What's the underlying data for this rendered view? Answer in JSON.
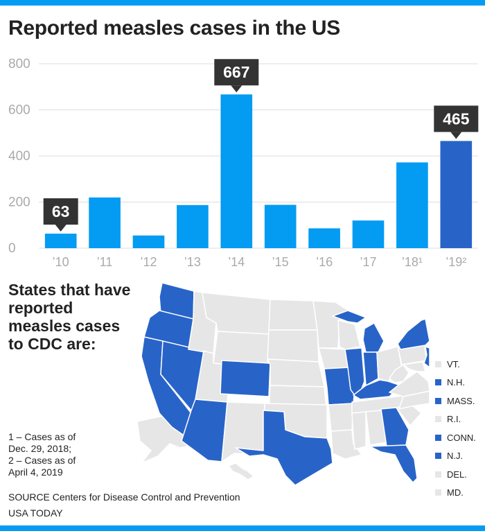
{
  "title": "Reported measles cases in the US",
  "chart_data": {
    "type": "bar",
    "categories": [
      "’10",
      "’11",
      "’12",
      "’13",
      "’14",
      "’15",
      "’16",
      "’17",
      "’18¹",
      "’19²"
    ],
    "values": [
      63,
      220,
      55,
      187,
      667,
      188,
      86,
      120,
      372,
      465
    ],
    "ylim": [
      0,
      800
    ],
    "yticks": [
      0,
      200,
      400,
      600,
      800
    ],
    "grid": true,
    "callouts": [
      {
        "index": 0,
        "label": "63"
      },
      {
        "index": 4,
        "label": "667"
      },
      {
        "index": 9,
        "label": "465"
      }
    ],
    "highlight_index": 9,
    "colors": {
      "bar": "#049bf2",
      "highlight": "#2864c8",
      "callout": "#333333",
      "grid": "#dddddd",
      "tick": "#aaaaaa"
    }
  },
  "map": {
    "heading": "States that have reported measles cases to CDC are:",
    "colors": {
      "reported": "#2864c8",
      "not_reported": "#e6e6e6",
      "border": "#ffffff"
    },
    "reported_states": [
      "WA",
      "OR",
      "CA",
      "NV",
      "AZ",
      "CO",
      "TX",
      "MO",
      "IL",
      "IN",
      "MI",
      "KY",
      "GA",
      "FL",
      "NY",
      "NH",
      "MA",
      "CT",
      "NJ"
    ],
    "legend": [
      {
        "label": "VT.",
        "reported": false
      },
      {
        "label": "N.H.",
        "reported": true
      },
      {
        "label": "MASS.",
        "reported": true
      },
      {
        "label": "R.I.",
        "reported": false
      },
      {
        "label": "CONN.",
        "reported": true
      },
      {
        "label": "N.J.",
        "reported": true
      },
      {
        "label": "DEL.",
        "reported": false
      },
      {
        "label": "MD.",
        "reported": false
      }
    ]
  },
  "footnotes": [
    "1 – Cases as of",
    "Dec. 29, 2018;",
    "2 – Cases as of",
    "April 4, 2019"
  ],
  "source": "SOURCE Centers for Disease Control and Prevention",
  "credit": "USA TODAY"
}
